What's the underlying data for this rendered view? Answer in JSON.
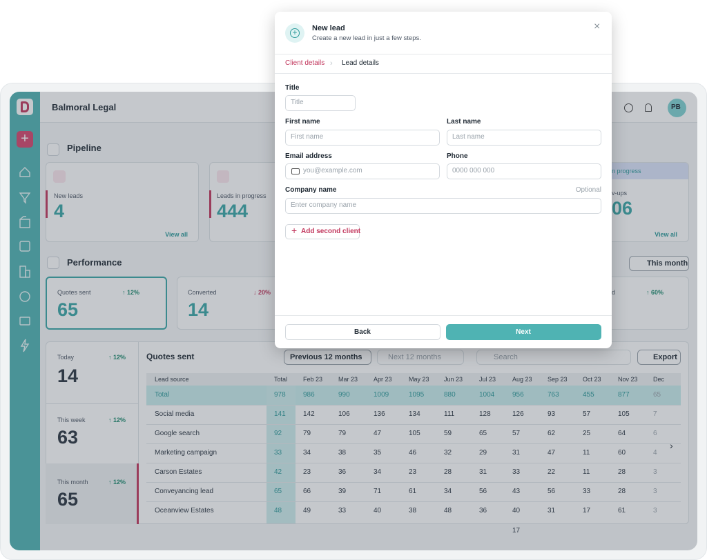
{
  "app": {
    "brand": "Balmoral Legal",
    "avatar": "PB",
    "pipeline": {
      "title": "Pipeline",
      "cards": [
        {
          "label": "New leads",
          "value": "4",
          "link": "View all"
        },
        {
          "label": "Leads in progress",
          "value": "444"
        },
        {
          "tag": "n progress",
          "label": "v-ups",
          "value": "06",
          "link": "View all"
        }
      ]
    },
    "performance": {
      "title": "Performance",
      "period": "This month",
      "cards": [
        {
          "label": "Quotes sent",
          "change": "↑ 12%",
          "value": "65"
        },
        {
          "label": "Converted",
          "change": "↓ 20%",
          "value": "14"
        },
        {
          "label": "d",
          "change": "↑ 60%"
        }
      ]
    },
    "stats": [
      {
        "label": "Today",
        "change": "↑ 12%",
        "value": "14"
      },
      {
        "label": "This week",
        "change": "↑ 12%",
        "value": "63"
      },
      {
        "label": "This month",
        "change": "↑ 12%",
        "value": "65"
      }
    ],
    "table": {
      "title": "Quotes sent",
      "prev": "Previous 12 months",
      "next": "Next 12 months",
      "search": "Search",
      "export": "Export",
      "columns": [
        "Lead source",
        "Total",
        "Feb 23",
        "Mar 23",
        "Apr 23",
        "May 23",
        "Jun 23",
        "Jul 23",
        "Aug 23",
        "Sep 23",
        "Oct 23",
        "Nov 23",
        "Dec"
      ],
      "rows": [
        [
          "Total",
          978,
          986,
          990,
          1009,
          1095,
          880,
          1004,
          956,
          763,
          455,
          877,
          65
        ],
        [
          "Social media",
          141,
          142,
          106,
          136,
          134,
          111,
          128,
          126,
          93,
          57,
          105,
          7
        ],
        [
          "Google search",
          92,
          79,
          79,
          47,
          105,
          59,
          65,
          57,
          62,
          25,
          64,
          6
        ],
        [
          "Marketing campaign",
          33,
          34,
          38,
          35,
          46,
          32,
          29,
          31,
          47,
          11,
          60,
          4
        ],
        [
          "Carson Estates",
          42,
          23,
          36,
          34,
          23,
          28,
          31,
          33,
          22,
          11,
          28,
          3
        ],
        [
          "Conveyancing lead",
          65,
          66,
          39,
          71,
          61,
          34,
          56,
          43,
          56,
          33,
          28,
          3
        ],
        [
          "Oceanview Estates",
          48,
          49,
          33,
          40,
          38,
          48,
          36,
          40,
          31,
          17,
          61,
          3
        ]
      ],
      "extra": 17
    }
  },
  "modal": {
    "title": "New lead",
    "subtitle": "Create a new lead in just a few steps.",
    "tabs": [
      "Client details",
      "Lead details"
    ],
    "fields": {
      "title": {
        "label": "Title",
        "placeholder": "Title"
      },
      "first": {
        "label": "First name",
        "placeholder": "First name"
      },
      "last": {
        "label": "Last name",
        "placeholder": "Last name"
      },
      "email": {
        "label": "Email address",
        "placeholder": "you@example.com"
      },
      "phone": {
        "label": "Phone",
        "placeholder": "0000 000 000"
      },
      "company": {
        "label": "Company name",
        "hint": "Optional",
        "placeholder": "Enter company name"
      }
    },
    "add": "Add second client",
    "back": "Back",
    "next": "Next"
  }
}
